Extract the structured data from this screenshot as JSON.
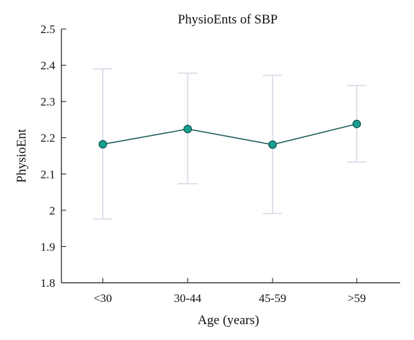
{
  "chart_data": {
    "type": "line",
    "title": "PhysioEnts of SBP",
    "xlabel": "Age (years)",
    "ylabel": "PhysioEnt",
    "categories": [
      "<30",
      "30-44",
      "45-59",
      ">59"
    ],
    "ylim": [
      1.8,
      2.5
    ],
    "yticks": [
      "1.8",
      "1.9",
      "2",
      "2.1",
      "2.2",
      "2.3",
      "2.4",
      "2.5"
    ],
    "grid": false,
    "series": [
      {
        "values": [
          2.182,
          2.224,
          2.181,
          2.238
        ],
        "error_low": [
          1.976,
          2.073,
          1.991,
          2.133
        ],
        "error_high": [
          2.39,
          2.378,
          2.372,
          2.344
        ]
      }
    ],
    "colors": {
      "line": "#1f5f5a",
      "marker_fill": "#17a08f",
      "marker_edge": "#0d4f48",
      "error_bar": "#d8d8e8",
      "axis": "#111111"
    }
  }
}
